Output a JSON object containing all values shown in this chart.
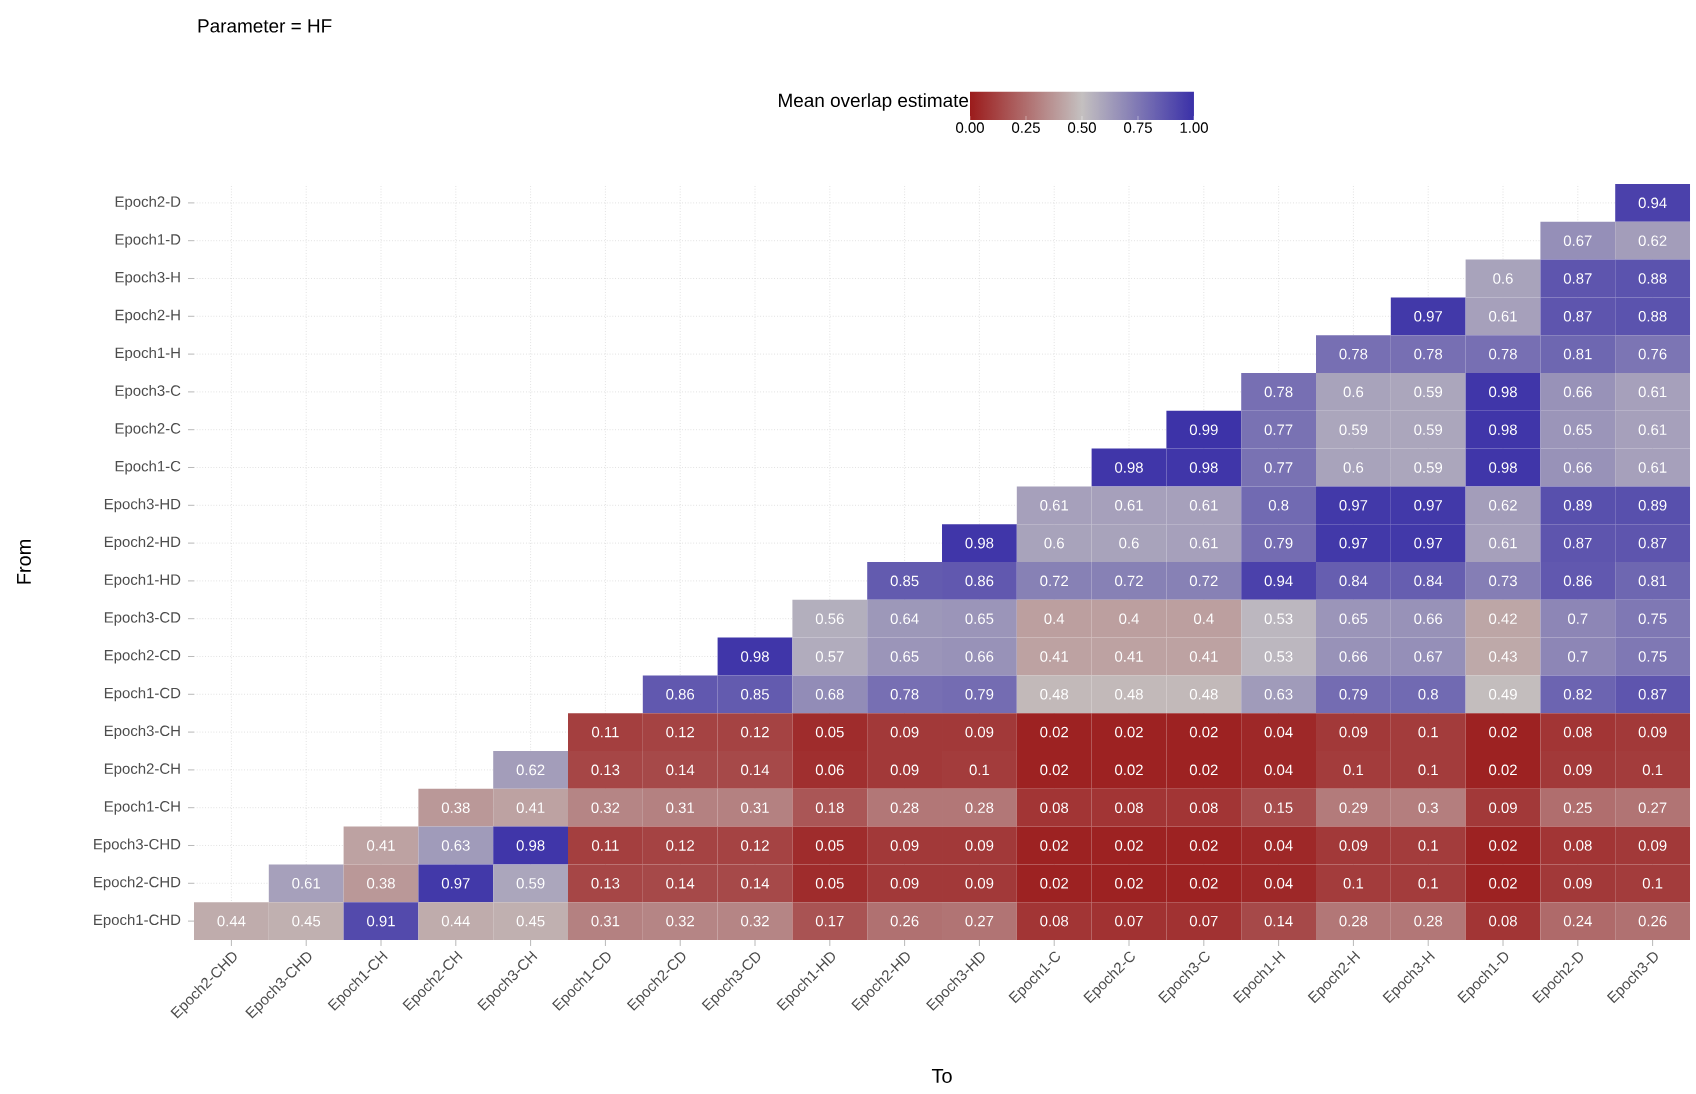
{
  "chart_data": {
    "type": "heatmap",
    "title": "Parameter = HF",
    "xlabel": "To",
    "ylabel": "From",
    "clabel": "Mean overlap estimate",
    "categories": [
      "Epoch2-CHD",
      "Epoch3-CHD",
      "Epoch1-CH",
      "Epoch2-CH",
      "Epoch3-CH",
      "Epoch1-CD",
      "Epoch2-CD",
      "Epoch3-CD",
      "Epoch1-HD",
      "Epoch2-HD",
      "Epoch3-HD",
      "Epoch1-C",
      "Epoch2-C",
      "Epoch3-C",
      "Epoch1-H",
      "Epoch2-H",
      "Epoch3-H",
      "Epoch1-D",
      "Epoch2-D",
      "Epoch3-D"
    ],
    "y_categories": [
      "Epoch2-D",
      "Epoch1-D",
      "Epoch3-H",
      "Epoch2-H",
      "Epoch1-H",
      "Epoch3-C",
      "Epoch2-C",
      "Epoch1-C",
      "Epoch3-HD",
      "Epoch2-HD",
      "Epoch1-HD",
      "Epoch3-CD",
      "Epoch2-CD",
      "Epoch1-CD",
      "Epoch3-CH",
      "Epoch2-CH",
      "Epoch1-CH",
      "Epoch3-CHD",
      "Epoch2-CHD",
      "Epoch1-CHD"
    ],
    "cells": [
      [
        null,
        null,
        null,
        null,
        null,
        null,
        null,
        null,
        null,
        null,
        null,
        null,
        null,
        null,
        null,
        null,
        null,
        null,
        null,
        0.94
      ],
      [
        null,
        null,
        null,
        null,
        null,
        null,
        null,
        null,
        null,
        null,
        null,
        null,
        null,
        null,
        null,
        null,
        null,
        null,
        0.67,
        0.62
      ],
      [
        null,
        null,
        null,
        null,
        null,
        null,
        null,
        null,
        null,
        null,
        null,
        null,
        null,
        null,
        null,
        null,
        null,
        0.6,
        0.87,
        0.88
      ],
      [
        null,
        null,
        null,
        null,
        null,
        null,
        null,
        null,
        null,
        null,
        null,
        null,
        null,
        null,
        null,
        null,
        0.97,
        0.61,
        0.87,
        0.88
      ],
      [
        null,
        null,
        null,
        null,
        null,
        null,
        null,
        null,
        null,
        null,
        null,
        null,
        null,
        null,
        null,
        0.78,
        0.78,
        0.78,
        0.81,
        0.76
      ],
      [
        null,
        null,
        null,
        null,
        null,
        null,
        null,
        null,
        null,
        null,
        null,
        null,
        null,
        null,
        0.78,
        0.6,
        0.59,
        0.98,
        0.66,
        0.61
      ],
      [
        null,
        null,
        null,
        null,
        null,
        null,
        null,
        null,
        null,
        null,
        null,
        null,
        null,
        0.99,
        0.77,
        0.59,
        0.59,
        0.98,
        0.65,
        0.61
      ],
      [
        null,
        null,
        null,
        null,
        null,
        null,
        null,
        null,
        null,
        null,
        null,
        null,
        0.98,
        0.98,
        0.77,
        0.6,
        0.59,
        0.98,
        0.66,
        0.61
      ],
      [
        null,
        null,
        null,
        null,
        null,
        null,
        null,
        null,
        null,
        null,
        null,
        0.61,
        0.61,
        0.61,
        0.8,
        0.97,
        0.97,
        0.62,
        0.89,
        0.89
      ],
      [
        null,
        null,
        null,
        null,
        null,
        null,
        null,
        null,
        null,
        null,
        0.98,
        0.6,
        0.6,
        0.61,
        0.79,
        0.97,
        0.97,
        0.61,
        0.87,
        0.87
      ],
      [
        null,
        null,
        null,
        null,
        null,
        null,
        null,
        null,
        null,
        0.85,
        0.86,
        0.72,
        0.72,
        0.72,
        0.94,
        0.84,
        0.84,
        0.73,
        0.86,
        0.81
      ],
      [
        null,
        null,
        null,
        null,
        null,
        null,
        null,
        null,
        0.56,
        0.64,
        0.65,
        0.4,
        0.4,
        0.4,
        0.53,
        0.65,
        0.66,
        0.42,
        0.7,
        0.75
      ],
      [
        null,
        null,
        null,
        null,
        null,
        null,
        null,
        0.98,
        0.57,
        0.65,
        0.66,
        0.41,
        0.41,
        0.41,
        0.53,
        0.66,
        0.67,
        0.43,
        0.7,
        0.75
      ],
      [
        null,
        null,
        null,
        null,
        null,
        null,
        0.86,
        0.85,
        0.68,
        0.78,
        0.79,
        0.48,
        0.48,
        0.48,
        0.63,
        0.79,
        0.8,
        0.49,
        0.82,
        0.87
      ],
      [
        null,
        null,
        null,
        null,
        null,
        0.11,
        0.12,
        0.12,
        0.05,
        0.09,
        0.09,
        0.02,
        0.02,
        0.02,
        0.04,
        0.09,
        0.1,
        0.02,
        0.08,
        0.09
      ],
      [
        null,
        null,
        null,
        null,
        0.62,
        0.13,
        0.14,
        0.14,
        0.06,
        0.09,
        0.1,
        0.02,
        0.02,
        0.02,
        0.04,
        0.1,
        0.1,
        0.02,
        0.09,
        0.1
      ],
      [
        null,
        null,
        null,
        0.38,
        0.41,
        0.32,
        0.31,
        0.31,
        0.18,
        0.28,
        0.28,
        0.08,
        0.08,
        0.08,
        0.15,
        0.29,
        0.3,
        0.09,
        0.25,
        0.27
      ],
      [
        null,
        null,
        0.41,
        0.63,
        0.98,
        0.11,
        0.12,
        0.12,
        0.05,
        0.09,
        0.09,
        0.02,
        0.02,
        0.02,
        0.04,
        0.09,
        0.1,
        0.02,
        0.08,
        0.09
      ],
      [
        null,
        0.61,
        0.38,
        0.97,
        0.59,
        0.13,
        0.14,
        0.14,
        0.05,
        0.09,
        0.09,
        0.02,
        0.02,
        0.02,
        0.04,
        0.1,
        0.1,
        0.02,
        0.09,
        0.1
      ],
      [
        0.44,
        0.45,
        0.91,
        0.44,
        0.45,
        0.31,
        0.32,
        0.32,
        0.17,
        0.26,
        0.27,
        0.08,
        0.07,
        0.07,
        0.14,
        0.28,
        0.28,
        0.08,
        0.24,
        0.26
      ]
    ],
    "clim": [
      0,
      1
    ],
    "cticks": [
      {
        "value": 0,
        "label": "0.00"
      },
      {
        "value": 0.25,
        "label": "0.25"
      },
      {
        "value": 0.5,
        "label": "0.50"
      },
      {
        "value": 0.75,
        "label": "0.75"
      },
      {
        "value": 1,
        "label": "1.00"
      }
    ],
    "data_labels": true,
    "grid": true
  }
}
